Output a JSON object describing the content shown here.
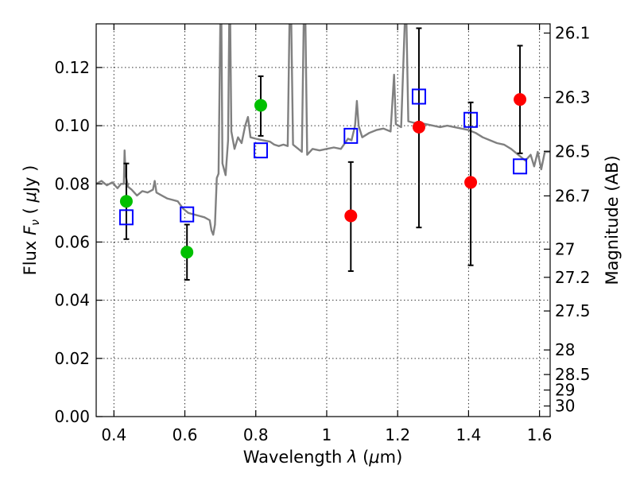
{
  "chart_data": {
    "type": "scatter",
    "xlabel": "Wavelength  λ (μm)",
    "ylabel": "Flux  Fν  ( μJy )",
    "ylabel_right": "Magnitude (AB)",
    "xlim": [
      0.35,
      1.63
    ],
    "ylim": [
      0.0,
      0.135
    ],
    "x_ticks": [
      "0.4",
      "0.6",
      "0.8",
      "1",
      "1.2",
      "1.4",
      "1.6"
    ],
    "x_tick_values": [
      0.4,
      0.6,
      0.8,
      1.0,
      1.2,
      1.4,
      1.6
    ],
    "y_ticks": [
      "0.00",
      "0.02",
      "0.04",
      "0.06",
      "0.08",
      "0.10",
      "0.12"
    ],
    "y_tick_values": [
      0.0,
      0.02,
      0.04,
      0.06,
      0.08,
      0.1,
      0.12
    ],
    "mag_ticks": [
      "26.1",
      "26.3",
      "26.5",
      "26.7",
      "27",
      "27.2",
      "27.5",
      "28",
      "28.5",
      "29",
      "30"
    ],
    "mag_tick_values": [
      26.1,
      26.3,
      26.5,
      26.7,
      27.0,
      27.2,
      27.5,
      28.0,
      28.5,
      29.0,
      30.0
    ],
    "grid": true,
    "colors": {
      "green": "#00c000",
      "red": "#ff0000",
      "blue": "#0000ff",
      "template": "#808080",
      "errorbar": "#000000"
    },
    "series": [
      {
        "marker": "circle",
        "color": "green",
        "points": [
          {
            "x": 0.435,
            "y": 0.074,
            "err_lo": 0.061,
            "err_hi": 0.087
          },
          {
            "x": 0.606,
            "y": 0.0565,
            "err_lo": 0.047,
            "err_hi": 0.066
          },
          {
            "x": 0.814,
            "y": 0.107,
            "err_lo": 0.0965,
            "err_hi": 0.117
          }
        ]
      },
      {
        "marker": "circle",
        "color": "red",
        "points": [
          {
            "x": 1.068,
            "y": 0.069,
            "err_lo": 0.05,
            "err_hi": 0.0875
          },
          {
            "x": 1.26,
            "y": 0.0995,
            "err_lo": 0.065,
            "err_hi": 0.1335
          },
          {
            "x": 1.406,
            "y": 0.0805,
            "err_lo": 0.052,
            "err_hi": 0.108
          },
          {
            "x": 1.545,
            "y": 0.109,
            "err_lo": 0.0905,
            "err_hi": 0.1275
          }
        ]
      },
      {
        "marker": "square",
        "color": "blue",
        "points": [
          {
            "x": 0.435,
            "y": 0.0685
          },
          {
            "x": 0.606,
            "y": 0.0695
          },
          {
            "x": 0.814,
            "y": 0.0915
          },
          {
            "x": 1.068,
            "y": 0.0965
          },
          {
            "x": 1.26,
            "y": 0.11
          },
          {
            "x": 1.406,
            "y": 0.102
          },
          {
            "x": 1.545,
            "y": 0.086
          }
        ]
      },
      {
        "type": "line",
        "color": "template",
        "points": [
          [
            0.35,
            0.08
          ],
          [
            0.365,
            0.081
          ],
          [
            0.38,
            0.0795
          ],
          [
            0.395,
            0.0805
          ],
          [
            0.41,
            0.0785
          ],
          [
            0.42,
            0.08
          ],
          [
            0.428,
            0.08
          ],
          [
            0.43,
            0.0915
          ],
          [
            0.433,
            0.083
          ],
          [
            0.44,
            0.079
          ],
          [
            0.45,
            0.078
          ],
          [
            0.465,
            0.076
          ],
          [
            0.48,
            0.0775
          ],
          [
            0.495,
            0.077
          ],
          [
            0.51,
            0.078
          ],
          [
            0.515,
            0.081
          ],
          [
            0.52,
            0.077
          ],
          [
            0.535,
            0.076
          ],
          [
            0.55,
            0.075
          ],
          [
            0.565,
            0.0745
          ],
          [
            0.58,
            0.074
          ],
          [
            0.595,
            0.0715
          ],
          [
            0.61,
            0.07
          ],
          [
            0.625,
            0.0695
          ],
          [
            0.64,
            0.069
          ],
          [
            0.655,
            0.0685
          ],
          [
            0.67,
            0.0675
          ],
          [
            0.675,
            0.064
          ],
          [
            0.68,
            0.0625
          ],
          [
            0.685,
            0.066
          ],
          [
            0.69,
            0.082
          ],
          [
            0.695,
            0.0835
          ],
          [
            0.7,
            0.135
          ],
          [
            0.703,
            0.135
          ],
          [
            0.706,
            0.087
          ],
          [
            0.715,
            0.083
          ],
          [
            0.722,
            0.095
          ],
          [
            0.725,
            0.135
          ],
          [
            0.728,
            0.135
          ],
          [
            0.731,
            0.098
          ],
          [
            0.74,
            0.092
          ],
          [
            0.75,
            0.096
          ],
          [
            0.76,
            0.094
          ],
          [
            0.77,
            0.1
          ],
          [
            0.778,
            0.103
          ],
          [
            0.785,
            0.096
          ],
          [
            0.8,
            0.0955
          ],
          [
            0.82,
            0.095
          ],
          [
            0.84,
            0.0945
          ],
          [
            0.852,
            0.0935
          ],
          [
            0.865,
            0.093
          ],
          [
            0.878,
            0.0935
          ],
          [
            0.89,
            0.093
          ],
          [
            0.895,
            0.135
          ],
          [
            0.9,
            0.135
          ],
          [
            0.905,
            0.0935
          ],
          [
            0.92,
            0.092
          ],
          [
            0.93,
            0.091
          ],
          [
            0.935,
            0.135
          ],
          [
            0.94,
            0.135
          ],
          [
            0.945,
            0.09
          ],
          [
            0.96,
            0.092
          ],
          [
            0.98,
            0.0915
          ],
          [
            1.0,
            0.092
          ],
          [
            1.02,
            0.0925
          ],
          [
            1.04,
            0.092
          ],
          [
            1.06,
            0.0955
          ],
          [
            1.07,
            0.095
          ],
          [
            1.08,
            0.1
          ],
          [
            1.085,
            0.1085
          ],
          [
            1.09,
            0.1
          ],
          [
            1.1,
            0.096
          ],
          [
            1.12,
            0.0975
          ],
          [
            1.14,
            0.0985
          ],
          [
            1.16,
            0.099
          ],
          [
            1.18,
            0.098
          ],
          [
            1.19,
            0.1175
          ],
          [
            1.195,
            0.1005
          ],
          [
            1.21,
            0.0995
          ],
          [
            1.22,
            0.135
          ],
          [
            1.225,
            0.135
          ],
          [
            1.23,
            0.1015
          ],
          [
            1.245,
            0.101
          ],
          [
            1.26,
            0.101
          ],
          [
            1.28,
            0.1005
          ],
          [
            1.3,
            0.1
          ],
          [
            1.32,
            0.0995
          ],
          [
            1.34,
            0.1
          ],
          [
            1.36,
            0.0995
          ],
          [
            1.38,
            0.099
          ],
          [
            1.4,
            0.0985
          ],
          [
            1.42,
            0.0975
          ],
          [
            1.44,
            0.096
          ],
          [
            1.46,
            0.095
          ],
          [
            1.48,
            0.094
          ],
          [
            1.5,
            0.0935
          ],
          [
            1.52,
            0.092
          ],
          [
            1.54,
            0.09
          ],
          [
            1.56,
            0.088
          ],
          [
            1.575,
            0.09
          ],
          [
            1.585,
            0.086
          ],
          [
            1.595,
            0.091
          ],
          [
            1.605,
            0.085
          ],
          [
            1.615,
            0.091
          ],
          [
            1.63,
            0.091
          ]
        ]
      }
    ]
  }
}
